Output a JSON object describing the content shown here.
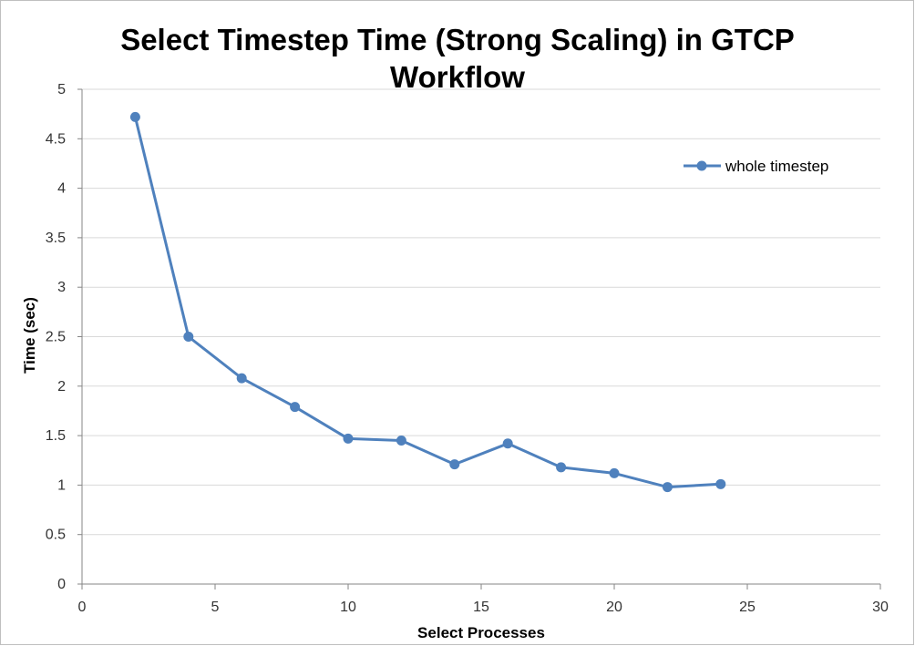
{
  "chart_data": {
    "type": "line",
    "title_lines": [
      "Select Timestep Time (Strong Scaling) in GTCP",
      "Workflow"
    ],
    "xlabel": "Select Processes",
    "ylabel": "Time (sec)",
    "xlim": [
      0,
      30
    ],
    "ylim": [
      0,
      5
    ],
    "x_ticks": [
      0,
      5,
      10,
      15,
      20,
      25,
      30
    ],
    "y_ticks": [
      0,
      0.5,
      1,
      1.5,
      2,
      2.5,
      3,
      3.5,
      4,
      4.5,
      5
    ],
    "grid": true,
    "legend_position": "top-right",
    "series": [
      {
        "name": "whole timestep",
        "color": "#4f81bd",
        "x": [
          2,
          4,
          6,
          8,
          10,
          12,
          14,
          16,
          18,
          20,
          22,
          24
        ],
        "y": [
          4.72,
          2.5,
          2.08,
          1.79,
          1.47,
          1.45,
          1.21,
          1.42,
          1.18,
          1.12,
          0.98,
          1.01
        ]
      }
    ]
  }
}
